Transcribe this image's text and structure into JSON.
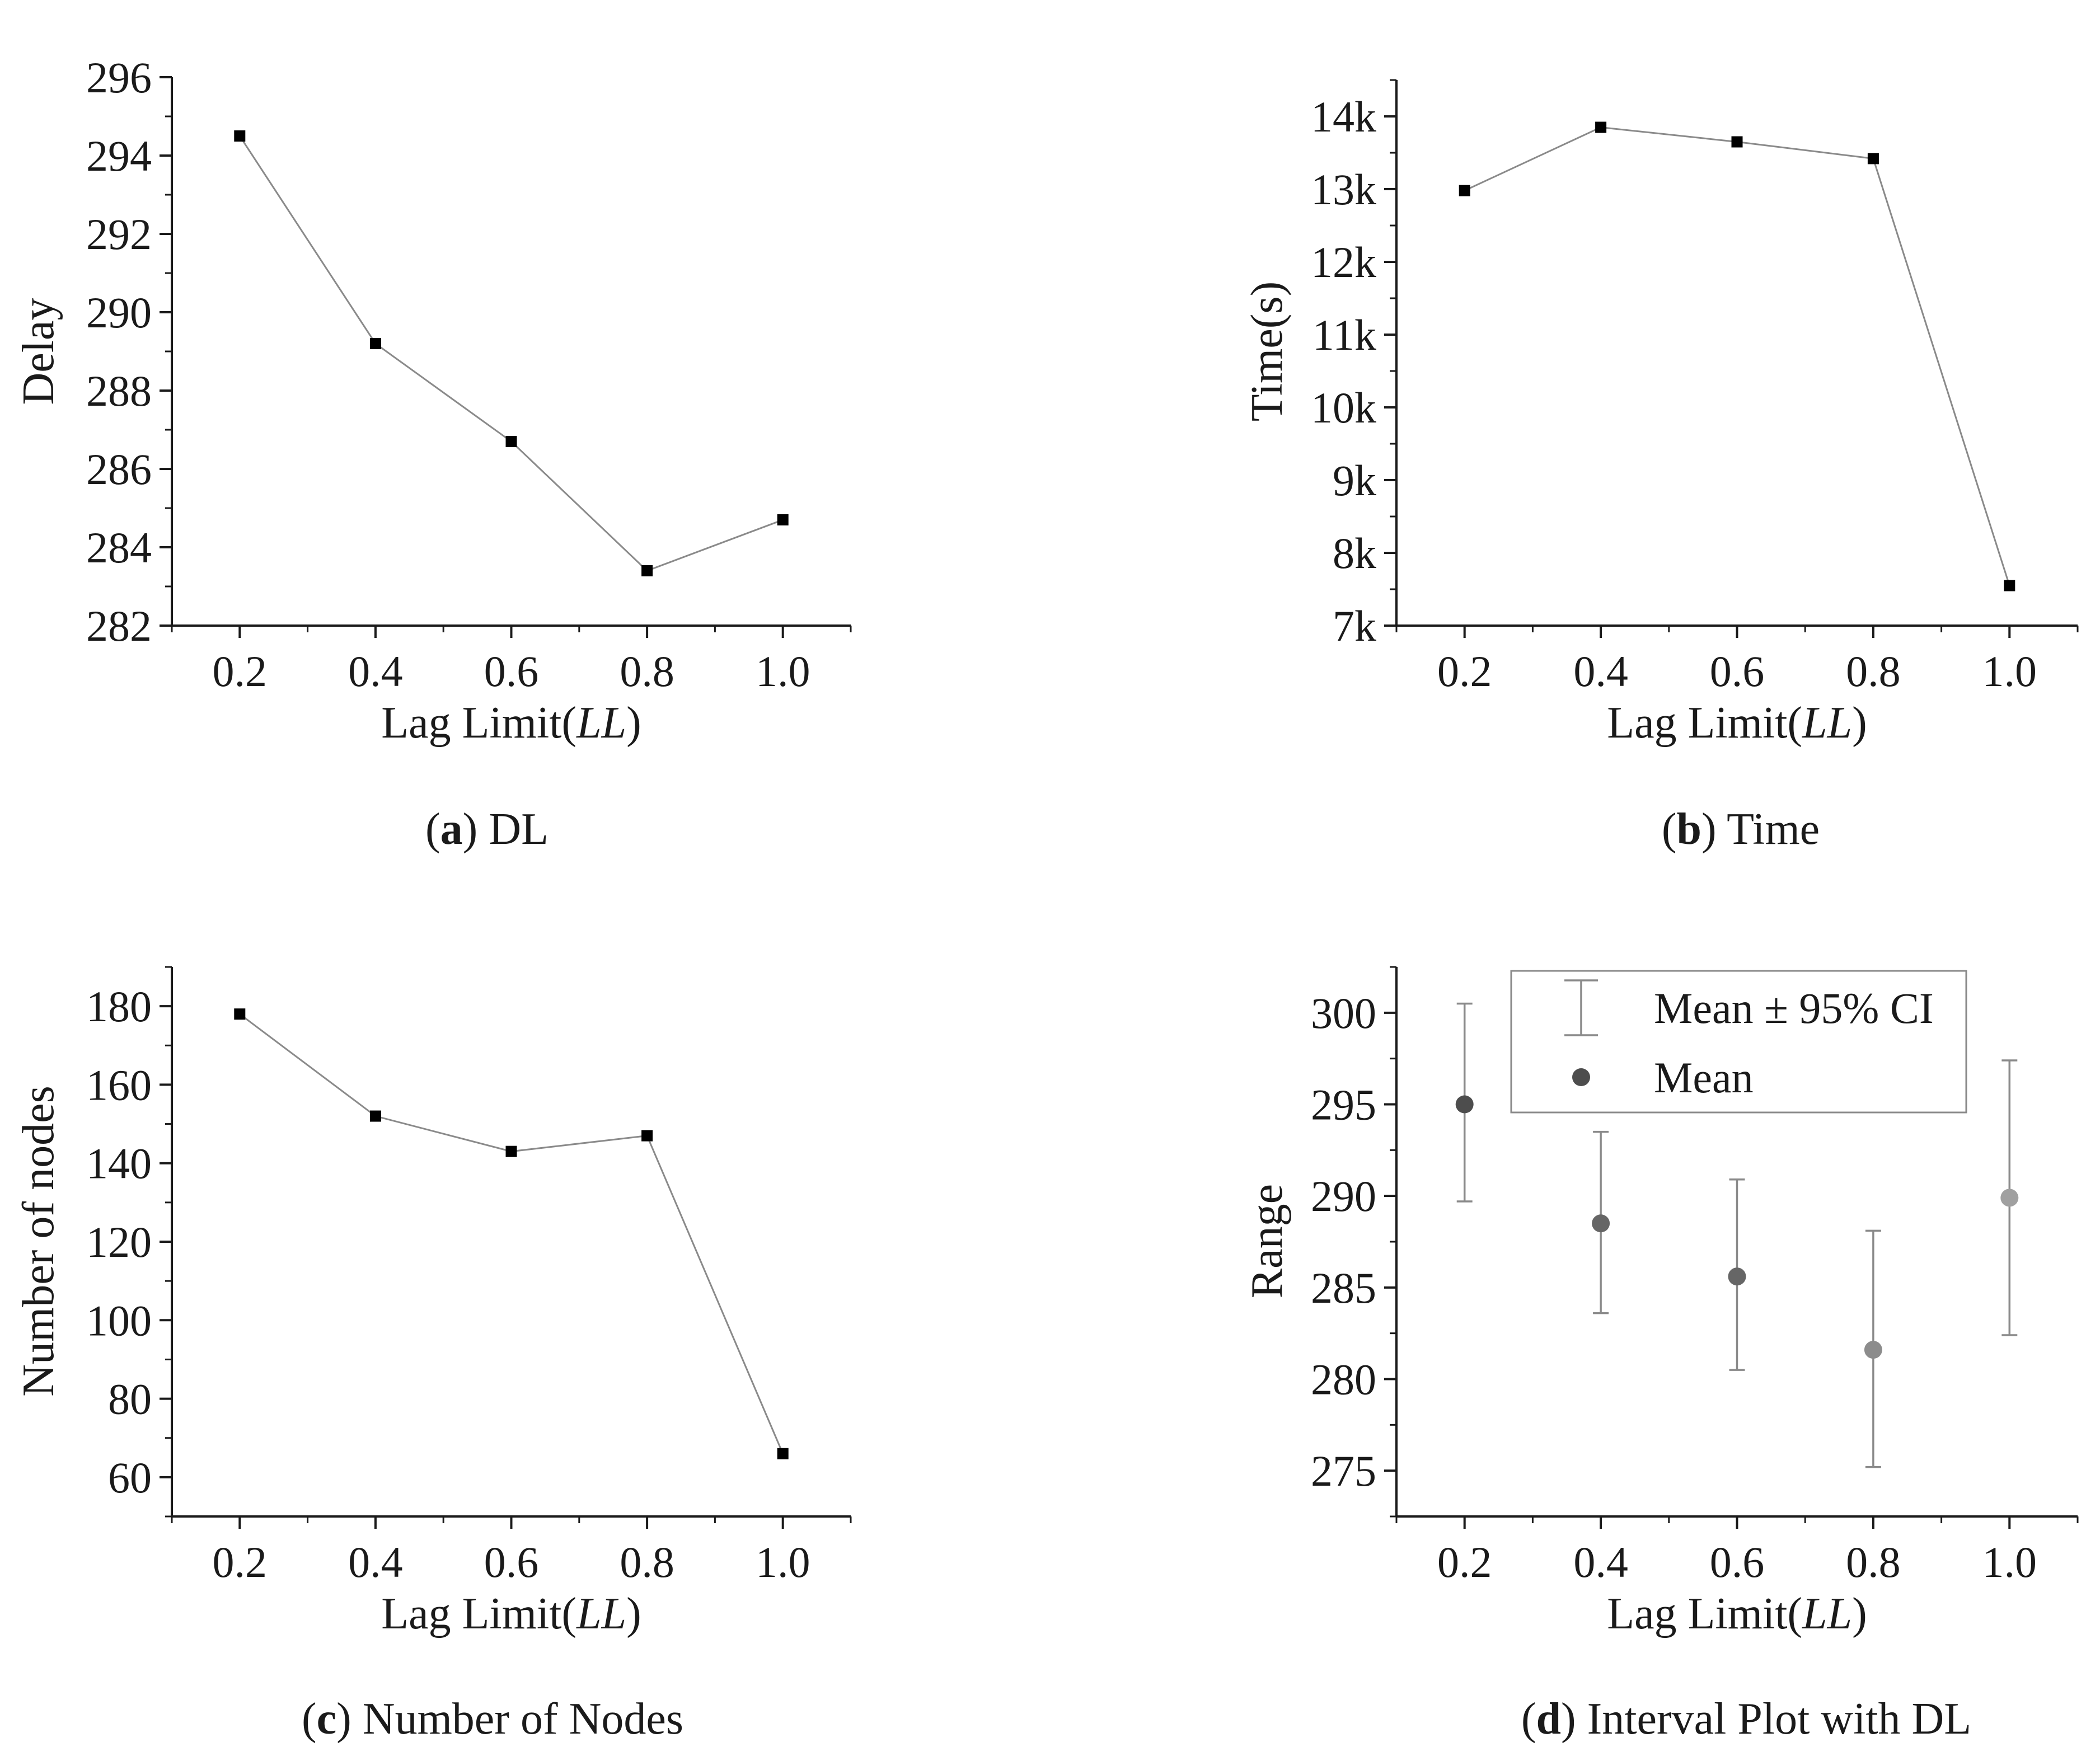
{
  "figure": {
    "captions": {
      "a": {
        "label": "a",
        "text": "DL"
      },
      "b": {
        "label": "b",
        "text": "Time"
      },
      "c": {
        "label": "c",
        "text": "Number of Nodes"
      },
      "d": {
        "label": "d",
        "text": "Interval Plot with DL"
      }
    }
  },
  "chart_data": [
    {
      "id": "a",
      "type": "line",
      "title": "",
      "xlabel_prefix": "Lag Limit(",
      "xlabel_italic": "LL",
      "xlabel_suffix": ")",
      "ylabel": "Delay",
      "x": [
        0.2,
        0.4,
        0.6,
        0.8,
        1.0
      ],
      "x_tick_labels": [
        "0.2",
        "0.4",
        "0.6",
        "0.8",
        "1.0"
      ],
      "xlim": [
        0.1,
        1.1
      ],
      "ylim": [
        282,
        296
      ],
      "y_ticks": [
        282,
        284,
        286,
        288,
        290,
        292,
        294,
        296
      ],
      "y_tick_labels": [
        "282",
        "284",
        "286",
        "288",
        "290",
        "292",
        "294",
        "296"
      ],
      "values": [
        294.5,
        289.2,
        286.7,
        283.4,
        284.7
      ]
    },
    {
      "id": "b",
      "type": "line",
      "title": "",
      "xlabel_prefix": "Lag Limit(",
      "xlabel_italic": "LL",
      "xlabel_suffix": ")",
      "ylabel": "Time(s)",
      "x": [
        0.2,
        0.4,
        0.6,
        0.8,
        1.0
      ],
      "x_tick_labels": [
        "0.2",
        "0.4",
        "0.6",
        "0.8",
        "1.0"
      ],
      "xlim": [
        0.1,
        1.1
      ],
      "ylim": [
        7000,
        14500
      ],
      "y_ticks": [
        7000,
        8000,
        9000,
        10000,
        11000,
        12000,
        13000,
        14000
      ],
      "y_tick_labels": [
        "7k",
        "8k",
        "9k",
        "10k",
        "11k",
        "12k",
        "13k",
        "14k"
      ],
      "values": [
        12980,
        13850,
        13650,
        13420,
        7550
      ]
    },
    {
      "id": "c",
      "type": "line",
      "title": "",
      "xlabel_prefix": "Lag Limit(",
      "xlabel_italic": "LL",
      "xlabel_suffix": ")",
      "ylabel": "Number of nodes",
      "x": [
        0.2,
        0.4,
        0.6,
        0.8,
        1.0
      ],
      "x_tick_labels": [
        "0.2",
        "0.4",
        "0.6",
        "0.8",
        "1.0"
      ],
      "xlim": [
        0.1,
        1.1
      ],
      "ylim": [
        50,
        190
      ],
      "y_ticks": [
        60,
        80,
        100,
        120,
        140,
        160,
        180
      ],
      "y_tick_labels": [
        "60",
        "80",
        "100",
        "120",
        "140",
        "160",
        "180"
      ],
      "values": [
        178,
        152,
        143,
        147,
        66
      ]
    },
    {
      "id": "d",
      "type": "scatter",
      "title": "",
      "xlabel_prefix": "Lag Limit(",
      "xlabel_italic": "LL",
      "xlabel_suffix": ")",
      "ylabel": "Range",
      "x": [
        0.2,
        0.4,
        0.6,
        0.8,
        1.0
      ],
      "x_tick_labels": [
        "0.2",
        "0.4",
        "0.6",
        "0.8",
        "1.0"
      ],
      "xlim": [
        0.1,
        1.1
      ],
      "ylim": [
        272.5,
        302.5
      ],
      "y_ticks": [
        275,
        280,
        285,
        290,
        295,
        300
      ],
      "y_tick_labels": [
        "275",
        "280",
        "285",
        "290",
        "295",
        "300"
      ],
      "mean": [
        295.0,
        288.5,
        285.6,
        281.6,
        289.9
      ],
      "ci_upper": [
        300.5,
        293.5,
        290.9,
        288.1,
        297.4
      ],
      "ci_lower": [
        289.7,
        283.6,
        280.5,
        275.2,
        282.4
      ],
      "point_colors": [
        "#4d4d4d",
        "#666666",
        "#666666",
        "#8c8c8c",
        "#a0a0a0"
      ],
      "legend": [
        {
          "label": "Mean ± 95% CI",
          "symbol": "error-bar"
        },
        {
          "label": "Mean",
          "symbol": "dot"
        }
      ]
    }
  ]
}
